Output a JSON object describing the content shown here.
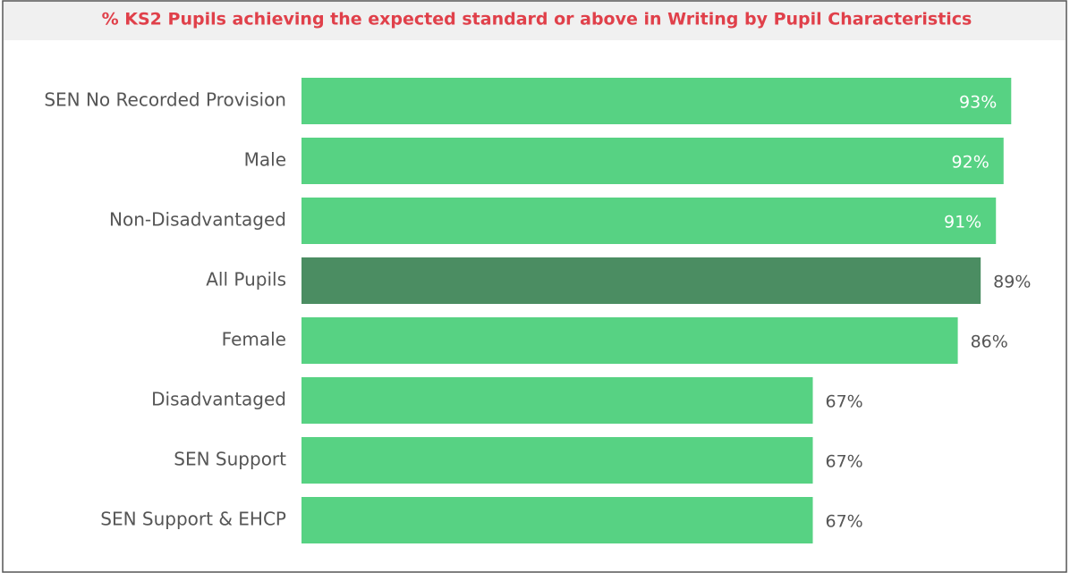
{
  "chart_data": {
    "type": "bar",
    "orientation": "horizontal",
    "title": "% KS2 Pupils achieving the expected standard or above in Writing by Pupil Characteristics",
    "categories": [
      "SEN No Recorded Provision",
      "Male",
      "Non-Disadvantaged",
      "All Pupils",
      "Female",
      "Disadvantaged",
      "SEN Support",
      "SEN Support & EHCP"
    ],
    "values": [
      93,
      92,
      91,
      89,
      86,
      67,
      67,
      67
    ],
    "value_labels": [
      "93%",
      "92%",
      "91%",
      "89%",
      "86%",
      "67%",
      "67%",
      "67%"
    ],
    "colors": [
      "#57d283",
      "#57d283",
      "#57d283",
      "#4b8d62",
      "#57d283",
      "#57d283",
      "#57d283",
      "#57d283"
    ],
    "xlim": [
      0,
      100
    ]
  }
}
